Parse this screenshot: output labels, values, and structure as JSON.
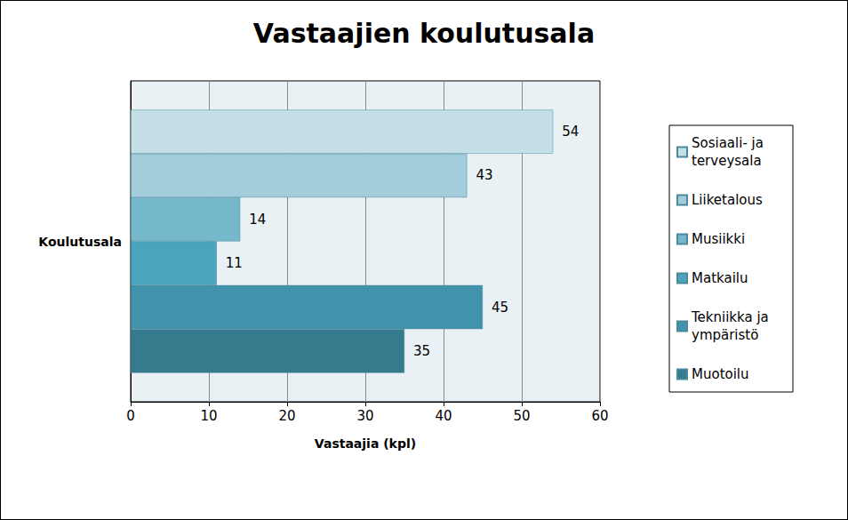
{
  "chart_data": {
    "type": "bar",
    "title": "Vastaajien koulutusala",
    "x_label": "Vastaajia (kpl)",
    "categories": [
      "Koulutusala"
    ],
    "series": [
      {
        "name": "Sosiaali- ja terveysala",
        "color": "#c5dfe7",
        "values": [
          54
        ]
      },
      {
        "name": "Liiketalous",
        "color": "#a3cddb",
        "values": [
          43
        ]
      },
      {
        "name": "Musiikki",
        "color": "#76b8cb",
        "values": [
          14
        ]
      },
      {
        "name": "Matkailu",
        "color": "#4aa4bd",
        "values": [
          11
        ]
      },
      {
        "name": "Tekniikka ja ympäristö",
        "color": "#4193ab",
        "values": [
          45
        ]
      },
      {
        "name": "Muotoilu",
        "color": "#357b8d",
        "values": [
          35
        ]
      }
    ],
    "xlim": [
      0,
      60
    ],
    "xticks": [
      0,
      10,
      20,
      30,
      40,
      50,
      60
    ],
    "orientation": "horizontal",
    "grid": true,
    "data_labels": true,
    "legend": "right"
  }
}
